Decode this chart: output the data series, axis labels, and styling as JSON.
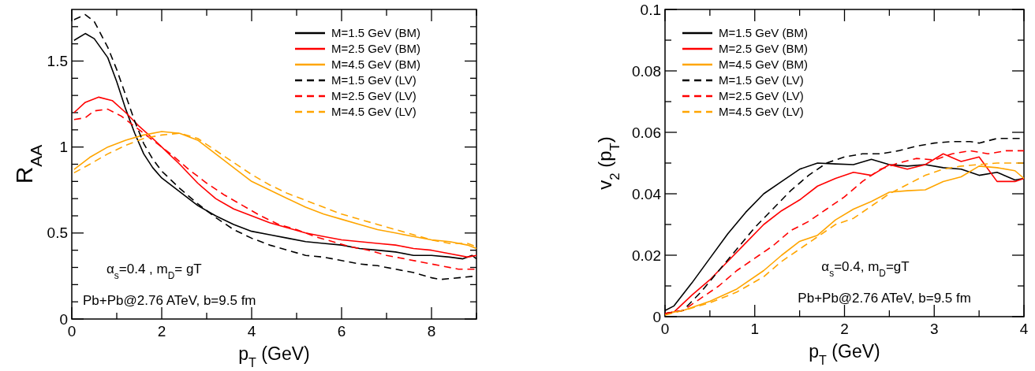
{
  "chart_data": [
    {
      "type": "line",
      "xlabel": "p$_{T}$ (GeV)",
      "ylabel": "R$_{AA}$",
      "xlim": [
        0,
        9
      ],
      "ylim": [
        0,
        1.8
      ],
      "xticks": [
        0,
        {
          "value": 1,
          "label": null
        },
        2,
        {
          "value": 3,
          "label": null
        },
        4,
        {
          "value": 5,
          "label": null
        },
        6,
        {
          "value": 7,
          "label": null
        },
        8,
        {
          "value": 9,
          "label": null
        }
      ],
      "yticks": [
        0,
        {
          "value": 0.1,
          "label": null
        },
        {
          "value": 0.2,
          "label": null
        },
        {
          "value": 0.3,
          "label": null
        },
        {
          "value": 0.4,
          "label": null
        },
        0.5,
        {
          "value": 0.6,
          "label": null
        },
        {
          "value": 0.7,
          "label": null
        },
        {
          "value": 0.8,
          "label": null
        },
        {
          "value": 0.9,
          "label": null
        },
        1,
        {
          "value": 1.1,
          "label": null
        },
        {
          "value": 1.2,
          "label": null
        },
        {
          "value": 1.3,
          "label": null
        },
        {
          "value": 1.4,
          "label": null
        },
        1.5,
        {
          "value": 1.6,
          "label": null
        },
        {
          "value": 1.7,
          "label": null
        }
      ],
      "legend": "top right",
      "grid": false,
      "annotations": [
        "α$_{s}$=0.4 , m$_{D}$= gT",
        "Pb+Pb@2.76 ATeV, b=9.5 fm"
      ],
      "series": [
        {
          "name": "M=1.5 GeV (BM)",
          "color": "#000000",
          "line_style": "solid",
          "x": [
            0.05,
            0.3,
            0.5,
            0.8,
            1.0,
            1.2,
            1.4,
            1.6,
            1.8,
            2.0,
            2.4,
            2.8,
            3.2,
            3.6,
            4.0,
            4.4,
            4.8,
            5.2,
            5.6,
            6.0,
            6.4,
            6.8,
            7.2,
            7.6,
            8.0,
            8.4,
            8.7,
            8.9,
            9.0
          ],
          "values": [
            1.62,
            1.66,
            1.63,
            1.52,
            1.38,
            1.22,
            1.08,
            0.96,
            0.88,
            0.82,
            0.74,
            0.66,
            0.6,
            0.55,
            0.51,
            0.49,
            0.47,
            0.45,
            0.44,
            0.43,
            0.41,
            0.4,
            0.39,
            0.37,
            0.37,
            0.36,
            0.35,
            0.37,
            0.35
          ]
        },
        {
          "name": "M=2.5 GeV (BM)",
          "color": "#ff0000",
          "line_style": "solid",
          "x": [
            0.05,
            0.3,
            0.6,
            0.9,
            1.2,
            1.5,
            1.8,
            2.0,
            2.4,
            2.8,
            3.2,
            3.6,
            4.0,
            4.4,
            4.8,
            5.2,
            5.6,
            6.0,
            6.4,
            6.8,
            7.2,
            7.6,
            8.0,
            8.4,
            8.8,
            9.0
          ],
          "values": [
            1.2,
            1.26,
            1.29,
            1.27,
            1.2,
            1.12,
            1.05,
            1.0,
            0.9,
            0.79,
            0.7,
            0.64,
            0.6,
            0.56,
            0.53,
            0.5,
            0.48,
            0.46,
            0.45,
            0.44,
            0.43,
            0.41,
            0.4,
            0.38,
            0.36,
            0.37
          ]
        },
        {
          "name": "M=4.5 GeV (BM)",
          "color": "#ffa500",
          "line_style": "solid",
          "x": [
            0.05,
            0.4,
            0.8,
            1.2,
            1.6,
            2.0,
            2.4,
            2.8,
            3.2,
            3.6,
            4.0,
            4.4,
            4.8,
            5.2,
            5.6,
            6.0,
            6.4,
            6.8,
            7.2,
            7.6,
            8.0,
            8.4,
            8.8,
            9.0
          ],
          "values": [
            0.87,
            0.94,
            1.0,
            1.04,
            1.07,
            1.09,
            1.08,
            1.04,
            0.96,
            0.88,
            0.8,
            0.75,
            0.7,
            0.65,
            0.61,
            0.58,
            0.55,
            0.52,
            0.5,
            0.48,
            0.46,
            0.45,
            0.43,
            0.41
          ]
        },
        {
          "name": "M=1.5 GeV (LV)",
          "color": "#000000",
          "line_style": "dashed",
          "x": [
            0.05,
            0.3,
            0.5,
            0.8,
            1.0,
            1.2,
            1.4,
            1.6,
            1.8,
            2.0,
            2.4,
            2.8,
            3.2,
            3.6,
            4.0,
            4.4,
            4.8,
            5.2,
            5.6,
            6.0,
            6.4,
            6.8,
            7.2,
            7.6,
            8.0,
            8.2,
            8.6,
            9.0
          ],
          "values": [
            1.74,
            1.77,
            1.73,
            1.58,
            1.45,
            1.3,
            1.15,
            1.02,
            0.93,
            0.86,
            0.76,
            0.67,
            0.59,
            0.52,
            0.47,
            0.43,
            0.4,
            0.37,
            0.36,
            0.34,
            0.32,
            0.31,
            0.29,
            0.27,
            0.24,
            0.23,
            0.24,
            0.25
          ]
        },
        {
          "name": "M=2.5 GeV (LV)",
          "color": "#ff0000",
          "line_style": "dashed",
          "x": [
            0.05,
            0.3,
            0.5,
            0.8,
            1.1,
            1.4,
            1.8,
            2.2,
            2.6,
            3.0,
            3.4,
            3.8,
            4.2,
            4.6,
            5.0,
            5.4,
            5.8,
            6.2,
            6.6,
            7.0,
            7.4,
            7.8,
            8.2,
            8.6,
            9.0
          ],
          "values": [
            1.16,
            1.17,
            1.21,
            1.22,
            1.18,
            1.12,
            1.04,
            0.96,
            0.87,
            0.79,
            0.72,
            0.66,
            0.6,
            0.55,
            0.52,
            0.48,
            0.45,
            0.42,
            0.4,
            0.37,
            0.35,
            0.33,
            0.31,
            0.29,
            0.29
          ]
        },
        {
          "name": "M=4.5 GeV (LV)",
          "color": "#ffa500",
          "line_style": "dashed",
          "x": [
            0.05,
            0.4,
            0.8,
            1.2,
            1.6,
            2.0,
            2.4,
            2.8,
            3.2,
            3.6,
            4.0,
            4.4,
            4.8,
            5.2,
            5.6,
            6.0,
            6.4,
            6.8,
            7.2,
            7.6,
            8.0,
            8.4,
            8.8,
            9.0
          ],
          "values": [
            0.85,
            0.9,
            0.96,
            1.01,
            1.05,
            1.07,
            1.08,
            1.05,
            0.98,
            0.91,
            0.84,
            0.78,
            0.73,
            0.69,
            0.65,
            0.61,
            0.58,
            0.55,
            0.52,
            0.49,
            0.46,
            0.44,
            0.44,
            0.42
          ]
        }
      ]
    },
    {
      "type": "line",
      "xlabel": "p$_{T}$ (GeV)",
      "ylabel": "v$_{2}$ (p$_{T}$)",
      "xlim": [
        0,
        4
      ],
      "ylim": [
        0,
        0.1
      ],
      "xticks": [
        0,
        {
          "value": 0.5,
          "label": null
        },
        1,
        {
          "value": 1.5,
          "label": null
        },
        2,
        {
          "value": 2.5,
          "label": null
        },
        3,
        {
          "value": 3.5,
          "label": null
        },
        4
      ],
      "yticks": [
        0,
        {
          "value": 0.01,
          "label": null
        },
        0.02,
        {
          "value": 0.03,
          "label": null
        },
        0.04,
        {
          "value": 0.05,
          "label": null
        },
        0.06,
        {
          "value": 0.07,
          "label": null
        },
        0.08,
        {
          "value": 0.09,
          "label": null
        },
        0.1
      ],
      "legend": "top left",
      "grid": false,
      "annotations": [
        "α$_{s}$=0.4, m$_{D}$=gT",
        "Pb+Pb@2.76 ATeV, b=9.5 fm"
      ],
      "series": [
        {
          "name": "M=1.5 GeV (BM)",
          "color": "#000000",
          "line_style": "solid",
          "x": [
            0,
            0.1,
            0.3,
            0.5,
            0.7,
            0.9,
            1.1,
            1.3,
            1.5,
            1.7,
            1.9,
            2.1,
            2.3,
            2.5,
            2.7,
            2.9,
            3.1,
            3.3,
            3.5,
            3.7,
            3.9,
            4.0
          ],
          "values": [
            0.002,
            0.0035,
            0.011,
            0.019,
            0.027,
            0.034,
            0.04,
            0.044,
            0.048,
            0.05,
            0.0497,
            0.0495,
            0.0512,
            0.0495,
            0.049,
            0.0495,
            0.0485,
            0.048,
            0.046,
            0.047,
            0.0445,
            0.045
          ]
        },
        {
          "name": "M=2.5 GeV (BM)",
          "color": "#ff0000",
          "line_style": "solid",
          "x": [
            0,
            0.1,
            0.3,
            0.5,
            0.7,
            0.9,
            1.1,
            1.3,
            1.5,
            1.7,
            1.9,
            2.1,
            2.3,
            2.5,
            2.7,
            2.9,
            3.1,
            3.3,
            3.5,
            3.7,
            3.9,
            4.0
          ],
          "values": [
            0.001,
            0.0015,
            0.007,
            0.012,
            0.018,
            0.024,
            0.03,
            0.0345,
            0.038,
            0.0425,
            0.045,
            0.047,
            0.046,
            0.0495,
            0.048,
            0.0495,
            0.053,
            0.0505,
            0.052,
            0.044,
            0.044,
            0.045
          ]
        },
        {
          "name": "M=4.5 GeV (BM)",
          "color": "#ffa500",
          "line_style": "solid",
          "x": [
            0,
            0.2,
            0.5,
            0.8,
            1.1,
            1.3,
            1.5,
            1.7,
            1.9,
            2.1,
            2.3,
            2.5,
            2.7,
            2.9,
            3.1,
            3.3,
            3.5,
            3.7,
            3.9,
            4.0
          ],
          "values": [
            0.001,
            0.002,
            0.005,
            0.009,
            0.015,
            0.02,
            0.0245,
            0.0265,
            0.0315,
            0.035,
            0.0375,
            0.0405,
            0.041,
            0.0413,
            0.044,
            0.0455,
            0.049,
            0.0485,
            0.0475,
            0.045
          ]
        },
        {
          "name": "M=1.5 GeV (LV)",
          "color": "#000000",
          "line_style": "dashed",
          "x": [
            0,
            0.2,
            0.4,
            0.6,
            0.8,
            1.0,
            1.2,
            1.4,
            1.6,
            1.8,
            2.0,
            2.2,
            2.4,
            2.6,
            2.8,
            3.0,
            3.2,
            3.4,
            3.5,
            3.7,
            3.9,
            4.0
          ],
          "values": [
            0.001,
            0.002,
            0.008,
            0.015,
            0.022,
            0.029,
            0.035,
            0.041,
            0.046,
            0.05,
            0.052,
            0.053,
            0.053,
            0.054,
            0.0555,
            0.0565,
            0.057,
            0.057,
            0.0565,
            0.058,
            0.058,
            0.058
          ]
        },
        {
          "name": "M=2.5 GeV (LV)",
          "color": "#ff0000",
          "line_style": "dashed",
          "x": [
            0,
            0.2,
            0.4,
            0.6,
            0.8,
            1.0,
            1.2,
            1.4,
            1.6,
            1.8,
            2.0,
            2.2,
            2.4,
            2.6,
            2.8,
            3.0,
            3.2,
            3.4,
            3.6,
            3.8,
            4.0
          ],
          "values": [
            0.001,
            0.002,
            0.006,
            0.01,
            0.015,
            0.019,
            0.023,
            0.028,
            0.031,
            0.035,
            0.039,
            0.044,
            0.048,
            0.05,
            0.0515,
            0.051,
            0.053,
            0.054,
            0.053,
            0.054,
            0.054
          ]
        },
        {
          "name": "M=4.5 GeV (LV)",
          "color": "#ffa500",
          "line_style": "dashed",
          "x": [
            0,
            0.2,
            0.5,
            0.8,
            1.1,
            1.3,
            1.5,
            1.7,
            1.9,
            2.1,
            2.3,
            2.5,
            2.7,
            2.9,
            3.1,
            3.3,
            3.5,
            3.7,
            3.9,
            4.0
          ],
          "values": [
            0.0005,
            0.002,
            0.0045,
            0.008,
            0.013,
            0.018,
            0.022,
            0.026,
            0.03,
            0.032,
            0.036,
            0.04,
            0.043,
            0.046,
            0.048,
            0.049,
            0.0495,
            0.05,
            0.05,
            0.05
          ]
        }
      ]
    }
  ]
}
